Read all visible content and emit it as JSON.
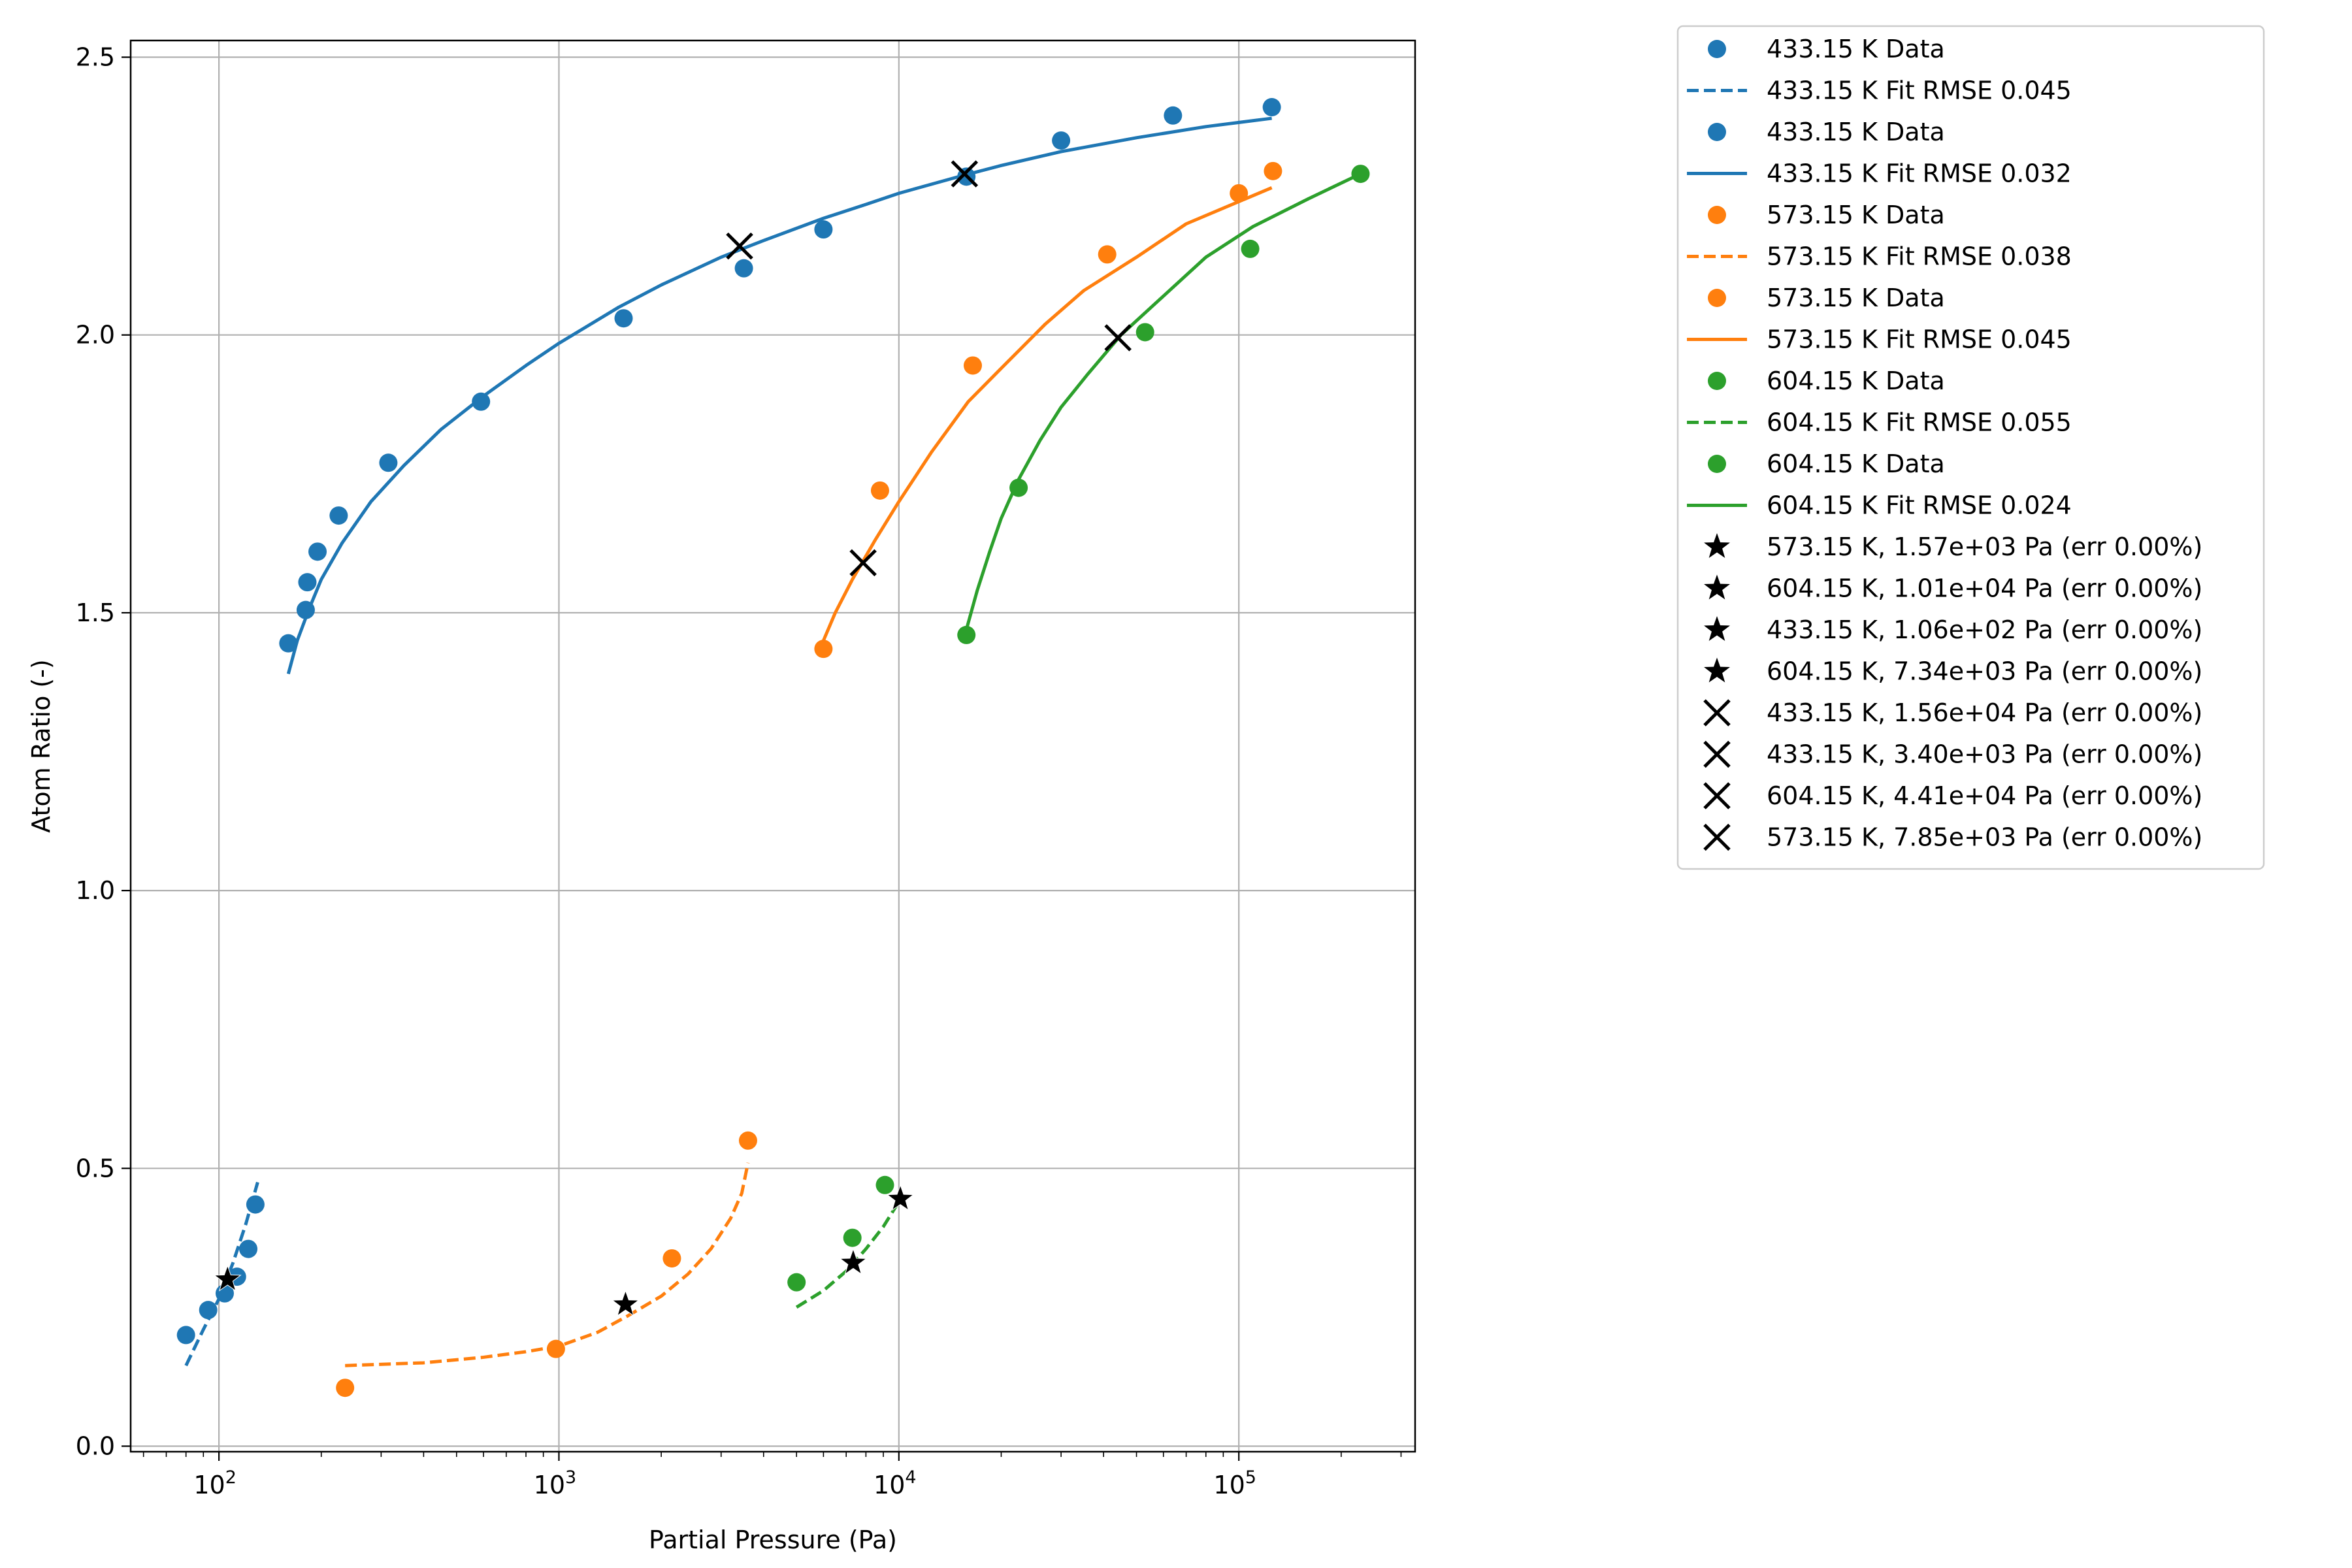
{
  "chart_data": {
    "type": "scatter",
    "xlabel": "Partial Pressure (Pa)",
    "ylabel": "Atom Ratio (-)",
    "xscale": "log",
    "xlim": [
      55,
      330000
    ],
    "ylim": [
      -0.01,
      2.53
    ],
    "grid": true,
    "legend_position": "outside-right",
    "x_ticks": [
      {
        "value": 100,
        "base": "10",
        "exp": "2"
      },
      {
        "value": 1000,
        "base": "10",
        "exp": "3"
      },
      {
        "value": 10000,
        "base": "10",
        "exp": "4"
      },
      {
        "value": 100000,
        "base": "10",
        "exp": "5"
      }
    ],
    "y_ticks": [
      {
        "value": 0.0,
        "label": "0.0"
      },
      {
        "value": 0.5,
        "label": "0.5"
      },
      {
        "value": 1.0,
        "label": "1.0"
      },
      {
        "value": 1.5,
        "label": "1.5"
      },
      {
        "value": 2.0,
        "label": "2.0"
      },
      {
        "value": 2.5,
        "label": "2.5"
      }
    ],
    "colors": {
      "blue": "#1f77b4",
      "orange": "#ff7f0e",
      "green": "#2ca02c",
      "marker": "#000000",
      "grid": "#b0b0b0"
    },
    "series": [
      {
        "name": "433.15 K Data",
        "kind": "scatter",
        "color": "#1f77b4",
        "points": [
          [
            80,
            0.2
          ],
          [
            93,
            0.245
          ],
          [
            104,
            0.275
          ],
          [
            113,
            0.305
          ],
          [
            122,
            0.355
          ],
          [
            128,
            0.435
          ]
        ]
      },
      {
        "name": "433.15 K Fit RMSE 0.045",
        "kind": "line",
        "dash": true,
        "color": "#1f77b4",
        "points": [
          [
            80,
            0.145
          ],
          [
            90,
            0.21
          ],
          [
            100,
            0.265
          ],
          [
            110,
            0.33
          ],
          [
            120,
            0.4
          ],
          [
            130,
            0.475
          ]
        ]
      },
      {
        "name": "433.15 K Data",
        "kind": "scatter",
        "color": "#1f77b4",
        "points": [
          [
            160,
            1.445
          ],
          [
            180,
            1.505
          ],
          [
            182,
            1.555
          ],
          [
            195,
            1.61
          ],
          [
            225,
            1.675
          ],
          [
            315,
            1.77
          ],
          [
            590,
            1.88
          ],
          [
            1550,
            2.03
          ],
          [
            3500,
            2.12
          ],
          [
            6000,
            2.19
          ],
          [
            15800,
            2.285
          ],
          [
            30000,
            2.35
          ],
          [
            64000,
            2.395
          ],
          [
            125000,
            2.41
          ]
        ]
      },
      {
        "name": "433.15 K Fit RMSE 0.032",
        "kind": "line",
        "dash": false,
        "color": "#1f77b4",
        "points": [
          [
            160,
            1.39
          ],
          [
            170,
            1.45
          ],
          [
            185,
            1.51
          ],
          [
            200,
            1.56
          ],
          [
            230,
            1.625
          ],
          [
            280,
            1.7
          ],
          [
            350,
            1.765
          ],
          [
            450,
            1.83
          ],
          [
            600,
            1.89
          ],
          [
            800,
            1.945
          ],
          [
            1000,
            1.985
          ],
          [
            1500,
            2.05
          ],
          [
            2000,
            2.09
          ],
          [
            3000,
            2.14
          ],
          [
            4000,
            2.17
          ],
          [
            6000,
            2.21
          ],
          [
            8000,
            2.235
          ],
          [
            10000,
            2.255
          ],
          [
            15000,
            2.285
          ],
          [
            20000,
            2.305
          ],
          [
            30000,
            2.33
          ],
          [
            50000,
            2.355
          ],
          [
            80000,
            2.375
          ],
          [
            125000,
            2.39
          ]
        ]
      },
      {
        "name": "573.15 K Data",
        "kind": "scatter",
        "color": "#ff7f0e",
        "points": [
          [
            235,
            0.105
          ],
          [
            980,
            0.175
          ],
          [
            2150,
            0.338
          ],
          [
            3600,
            0.55
          ]
        ]
      },
      {
        "name": "573.15 K Fit RMSE 0.038",
        "kind": "line",
        "dash": true,
        "color": "#ff7f0e",
        "points": [
          [
            235,
            0.145
          ],
          [
            400,
            0.15
          ],
          [
            600,
            0.16
          ],
          [
            800,
            0.17
          ],
          [
            1000,
            0.18
          ],
          [
            1300,
            0.205
          ],
          [
            1600,
            0.235
          ],
          [
            2000,
            0.27
          ],
          [
            2400,
            0.31
          ],
          [
            2800,
            0.355
          ],
          [
            3200,
            0.41
          ],
          [
            3450,
            0.455
          ],
          [
            3600,
            0.51
          ]
        ]
      },
      {
        "name": "573.15 K Data",
        "kind": "scatter",
        "color": "#ff7f0e",
        "points": [
          [
            6000,
            1.435
          ],
          [
            8800,
            1.72
          ],
          [
            16500,
            1.945
          ],
          [
            41000,
            2.145
          ],
          [
            100000,
            2.255
          ],
          [
            126000,
            2.295
          ]
        ]
      },
      {
        "name": "573.15 K Fit RMSE 0.045",
        "kind": "line",
        "dash": false,
        "color": "#ff7f0e",
        "points": [
          [
            6000,
            1.45
          ],
          [
            6500,
            1.5
          ],
          [
            7300,
            1.56
          ],
          [
            8500,
            1.63
          ],
          [
            10000,
            1.7
          ],
          [
            12500,
            1.79
          ],
          [
            16000,
            1.88
          ],
          [
            20000,
            1.94
          ],
          [
            27000,
            2.02
          ],
          [
            35000,
            2.08
          ],
          [
            50000,
            2.14
          ],
          [
            70000,
            2.2
          ],
          [
            100000,
            2.24
          ],
          [
            125000,
            2.265
          ]
        ]
      },
      {
        "name": "604.15 K Data",
        "kind": "scatter",
        "color": "#2ca02c",
        "points": [
          [
            5000,
            0.295
          ],
          [
            7300,
            0.375
          ],
          [
            9100,
            0.47
          ]
        ]
      },
      {
        "name": "604.15 K Fit RMSE 0.055",
        "kind": "line",
        "dash": true,
        "color": "#2ca02c",
        "points": [
          [
            5000,
            0.25
          ],
          [
            6000,
            0.28
          ],
          [
            7000,
            0.315
          ],
          [
            8000,
            0.355
          ],
          [
            9000,
            0.395
          ],
          [
            10000,
            0.44
          ]
        ]
      },
      {
        "name": "604.15 K Data",
        "kind": "scatter",
        "color": "#2ca02c",
        "points": [
          [
            15800,
            1.46
          ],
          [
            22500,
            1.725
          ],
          [
            53000,
            2.005
          ],
          [
            108000,
            2.155
          ],
          [
            228000,
            2.29
          ]
        ]
      },
      {
        "name": "604.15 K Fit RMSE 0.024",
        "kind": "line",
        "dash": false,
        "color": "#2ca02c",
        "points": [
          [
            15800,
            1.47
          ],
          [
            17000,
            1.54
          ],
          [
            18500,
            1.61
          ],
          [
            20000,
            1.67
          ],
          [
            22500,
            1.74
          ],
          [
            26000,
            1.81
          ],
          [
            30000,
            1.87
          ],
          [
            36000,
            1.93
          ],
          [
            45000,
            2.0
          ],
          [
            60000,
            2.07
          ],
          [
            80000,
            2.14
          ],
          [
            110000,
            2.195
          ],
          [
            160000,
            2.245
          ],
          [
            228000,
            2.29
          ]
        ]
      },
      {
        "name": "573.15 K, 1.57e+03 Pa (err 0.00%)",
        "kind": "star",
        "color": "#000000",
        "points": [
          [
            1570,
            0.255
          ]
        ]
      },
      {
        "name": "604.15 K, 1.01e+04 Pa (err 0.00%)",
        "kind": "star",
        "color": "#000000",
        "points": [
          [
            10100,
            0.445
          ]
        ]
      },
      {
        "name": "433.15 K, 1.06e+02 Pa (err 0.00%)",
        "kind": "star",
        "color": "#000000",
        "points": [
          [
            106,
            0.3
          ]
        ]
      },
      {
        "name": "604.15 K, 7.34e+03 Pa (err 0.00%)",
        "kind": "star",
        "color": "#000000",
        "points": [
          [
            7340,
            0.33
          ]
        ]
      },
      {
        "name": "433.15 K, 1.56e+04 Pa (err 0.00%)",
        "kind": "x",
        "color": "#000000",
        "points": [
          [
            15600,
            2.29
          ]
        ]
      },
      {
        "name": "433.15 K, 3.40e+03 Pa (err 0.00%)",
        "kind": "x",
        "color": "#000000",
        "points": [
          [
            3400,
            2.16
          ]
        ]
      },
      {
        "name": "604.15 K, 4.41e+04 Pa (err 0.00%)",
        "kind": "x",
        "color": "#000000",
        "points": [
          [
            44100,
            1.995
          ]
        ]
      },
      {
        "name": "573.15 K, 7.85e+03 Pa (err 0.00%)",
        "kind": "x",
        "color": "#000000",
        "points": [
          [
            7850,
            1.59
          ]
        ]
      }
    ]
  }
}
